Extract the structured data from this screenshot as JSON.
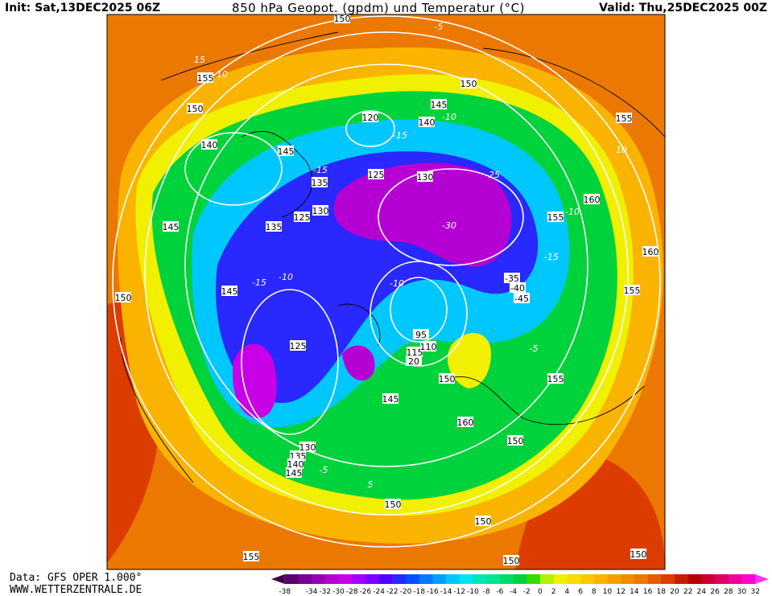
{
  "header": {
    "init": "Init: Sat,13DEC2025 06Z",
    "title": "850 hPa Geopot. (gpdm) und Temperatur (°C)",
    "valid": "Valid: Thu,25DEC2025 00Z"
  },
  "footer": {
    "source": "Data: GFS OPER 1.000°",
    "site": "WWW.WETTERZENTRALE.DE"
  },
  "colorbar": {
    "labels": [
      "-38",
      "-34",
      "-32",
      "-30",
      "-28",
      "-26",
      "-24",
      "-22",
      "-20",
      "-18",
      "-16",
      "-14",
      "-12",
      "-10",
      "-8",
      "-6",
      "-4",
      "-2",
      "0",
      "2",
      "4",
      "6",
      "8",
      "10",
      "12",
      "14",
      "16",
      "18",
      "20",
      "22",
      "24",
      "26",
      "28",
      "30",
      "32"
    ],
    "colors": [
      "#3c0046",
      "#5a006e",
      "#780096",
      "#9600b4",
      "#b400d2",
      "#c800e6",
      "#a000ff",
      "#7800ff",
      "#5000ff",
      "#2828ff",
      "#0050ff",
      "#0078ff",
      "#00a0ff",
      "#00c8ff",
      "#00e6f0",
      "#00e6b4",
      "#00e68c",
      "#00dc64",
      "#00d23c",
      "#32dc00",
      "#b4f000",
      "#f0f000",
      "#fadc00",
      "#fac800",
      "#fab400",
      "#f5a000",
      "#f08c00",
      "#eb7800",
      "#e65a00",
      "#dc3c00",
      "#c81e00",
      "#b40000",
      "#c80032",
      "#dc0064",
      "#f0009b",
      "#ff00d2",
      "#ff32ff"
    ]
  },
  "map": {
    "geopotential_labels": [
      "150",
      "155",
      "150",
      "140",
      "145",
      "145",
      "135",
      "130",
      "125",
      "135",
      "150",
      "145",
      "125",
      "120",
      "140",
      "145",
      "150",
      "125",
      "130",
      "155",
      "160",
      "155",
      "160",
      "155",
      "155",
      "150",
      "160",
      "150",
      "150",
      "150",
      "150",
      "150",
      "155",
      "145",
      "130",
      "135",
      "140",
      "145",
      "115",
      "110",
      "95",
      "20",
      "-45",
      "-40",
      "-35"
    ],
    "temperature_labels": [
      "-5",
      "-10",
      "-15",
      "-25",
      "-30",
      "-10",
      "-15",
      "-10",
      "-5",
      "-15",
      "-10",
      "-5",
      "5",
      "10",
      "15",
      "-15",
      "10"
    ]
  }
}
